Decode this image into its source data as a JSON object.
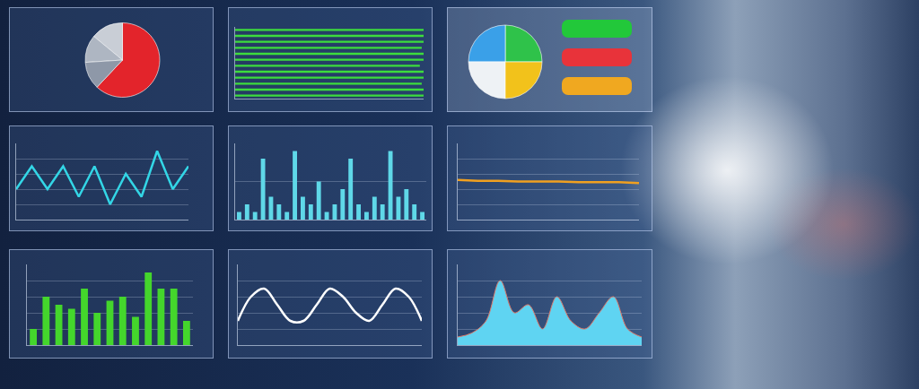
{
  "chart_data": [
    {
      "type": "pie",
      "values": [
        62,
        14,
        12,
        12
      ],
      "colors": [
        "#e3242b",
        "#c9ced6",
        "#aeb6c2",
        "#8e98a8"
      ]
    },
    {
      "type": "bar",
      "orientation": "horizontal",
      "categories": [
        null,
        null,
        null,
        null,
        null,
        null,
        null,
        null,
        null,
        null,
        null,
        null
      ],
      "values": [
        100,
        100,
        99,
        100,
        100,
        98,
        100,
        100,
        99,
        100,
        100,
        100
      ],
      "color": "#3ddc3d",
      "xlim": [
        0,
        100
      ],
      "xticks": [
        0,
        100
      ],
      "grid": false,
      "tick_labels": false
    },
    {
      "type": "pie",
      "values": [
        25,
        25,
        25,
        25
      ],
      "colors": [
        "#2fc24a",
        "#3aa0e8",
        "#eef2f5",
        "#f2c21b"
      ]
    },
    {
      "type": "line",
      "categories": [
        null,
        null,
        null,
        null,
        null,
        null,
        null,
        null,
        null,
        null,
        null,
        null
      ],
      "values": [
        4,
        7,
        4,
        7,
        3,
        7,
        2,
        6,
        3,
        9,
        4,
        7
      ],
      "color": "#33d6e6",
      "ylim": [
        0,
        10
      ],
      "yticks": [
        0,
        2,
        4,
        6,
        8,
        10
      ],
      "grid": true,
      "tick_labels": false
    },
    {
      "type": "bar",
      "categories": [
        null,
        null,
        null,
        null,
        null,
        null,
        null,
        null,
        null,
        null,
        null,
        null,
        null,
        null,
        null,
        null,
        null,
        null,
        null,
        null,
        null,
        null,
        null,
        null
      ],
      "values": [
        1,
        2,
        1,
        8,
        3,
        2,
        1,
        9,
        3,
        2,
        5,
        1,
        2,
        4,
        8,
        2,
        1,
        3,
        2,
        9,
        3,
        4,
        2,
        1
      ],
      "color": "#5fd8e8",
      "ylim": [
        0,
        10
      ],
      "yticks": [
        0,
        5,
        10
      ],
      "grid": true,
      "tick_labels": false
    },
    {
      "type": "line",
      "categories": [
        null,
        null,
        null,
        null,
        null,
        null,
        null,
        null,
        null,
        null
      ],
      "values": [
        5.2,
        5.1,
        5.1,
        5.0,
        5.0,
        5.0,
        4.9,
        4.9,
        4.9,
        4.8
      ],
      "color": "#f0a020",
      "ylim": [
        0,
        10
      ],
      "yticks": [
        0,
        2,
        4,
        6,
        8,
        10
      ],
      "grid": true,
      "tick_labels": false
    },
    {
      "type": "bar",
      "categories": [
        null,
        null,
        null,
        null,
        null,
        null,
        null,
        null,
        null,
        null,
        null,
        null,
        null
      ],
      "values": [
        2,
        6,
        5,
        4.5,
        7,
        4,
        5.5,
        6,
        3.5,
        9,
        7,
        7,
        3
      ],
      "color": "#44d62c",
      "ylim": [
        0,
        10
      ],
      "yticks": [
        0,
        2,
        4,
        6,
        8,
        10
      ],
      "grid": true,
      "tick_labels": false
    },
    {
      "type": "line",
      "line_style": "spline",
      "categories": [
        null,
        null,
        null,
        null,
        null,
        null,
        null,
        null,
        null,
        null,
        null,
        null,
        null,
        null,
        null
      ],
      "values": [
        3,
        6,
        7,
        5,
        3,
        3,
        5,
        7,
        6,
        4,
        3,
        5,
        7,
        6,
        3
      ],
      "color": "#ffffff",
      "ylim": [
        0,
        10
      ],
      "yticks": [
        0,
        2,
        4,
        6,
        8,
        10
      ],
      "grid": true,
      "tick_labels": false
    },
    {
      "type": "area",
      "categories": [
        null,
        null,
        null,
        null,
        null,
        null,
        null,
        null,
        null,
        null,
        null,
        null,
        null,
        null
      ],
      "values": [
        1,
        1.5,
        3,
        8,
        4,
        5,
        2,
        6,
        3,
        2,
        4,
        6,
        2,
        1
      ],
      "color": "#5fd4f2",
      "ylim": [
        0,
        10
      ],
      "yticks": [
        0,
        2,
        4,
        6,
        8,
        10
      ],
      "grid": true,
      "tick_labels": false
    }
  ]
}
